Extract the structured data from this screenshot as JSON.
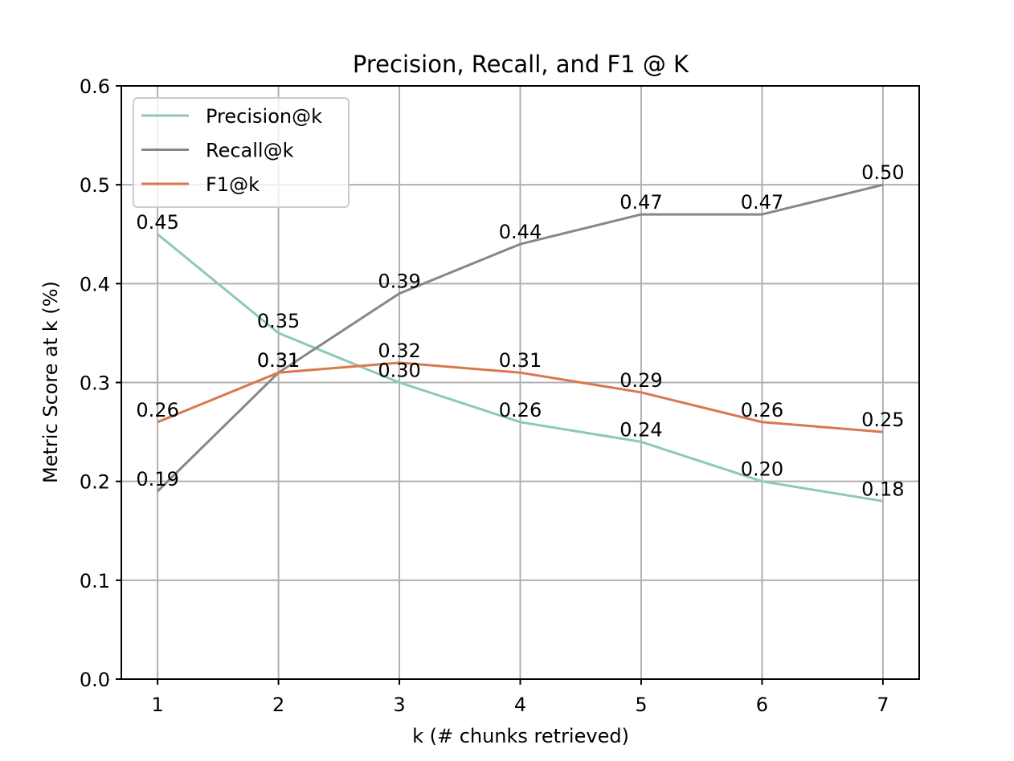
{
  "chart_data": {
    "type": "line",
    "title": "Precision, Recall, and F1 @ K",
    "xlabel": "k (# chunks retrieved)",
    "ylabel": "Metric Score at k (%)",
    "x": [
      1,
      2,
      3,
      4,
      5,
      6,
      7
    ],
    "xlim": [
      0.7,
      7.3
    ],
    "ylim": [
      0.0,
      0.6
    ],
    "yticks": [
      "0.0",
      "0.1",
      "0.2",
      "0.3",
      "0.4",
      "0.5",
      "0.6"
    ],
    "xticks": [
      "1",
      "2",
      "3",
      "4",
      "5",
      "6",
      "7"
    ],
    "grid": true,
    "legend_position": "top-left",
    "series": [
      {
        "name": "Precision@k",
        "color": "#8dc9b3",
        "values": [
          0.45,
          0.35,
          0.3,
          0.26,
          0.24,
          0.2,
          0.18
        ],
        "labels": [
          "0.45",
          "0.35",
          "0.30",
          "0.26",
          "0.24",
          "0.20",
          "0.18"
        ]
      },
      {
        "name": "Recall@k",
        "color": "#878787",
        "values": [
          0.19,
          0.31,
          0.39,
          0.44,
          0.47,
          0.47,
          0.5
        ],
        "labels": [
          "0.19",
          "0.31",
          "0.39",
          "0.44",
          "0.47",
          "0.47",
          "0.50"
        ]
      },
      {
        "name": "F1@k",
        "color": "#d9774f",
        "values": [
          0.26,
          0.31,
          0.32,
          0.31,
          0.29,
          0.26,
          0.25
        ],
        "labels": [
          "0.26",
          "0.31",
          "0.32",
          "0.31",
          "0.29",
          "0.26",
          "0.25"
        ]
      }
    ]
  }
}
